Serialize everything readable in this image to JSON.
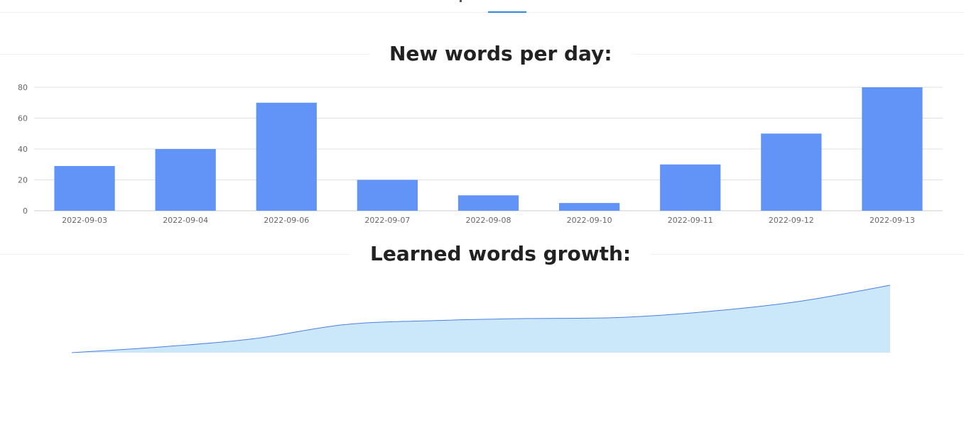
{
  "colors": {
    "tab_accent": "#2d8cd6",
    "bar": "#6294f8",
    "gridline": "#e0e0e0",
    "axis": "#cccccc",
    "area_fill": "#cbe8fb",
    "area_stroke": "#4a7fe0"
  },
  "sections": {
    "daily_title": "New words per day:",
    "growth_title": "Learned words growth:"
  },
  "chart_data": [
    {
      "type": "bar",
      "title": "New words per day:",
      "categories": [
        "2022-09-03",
        "2022-09-04",
        "2022-09-06",
        "2022-09-07",
        "2022-09-08",
        "2022-09-10",
        "2022-09-11",
        "2022-09-12",
        "2022-09-13"
      ],
      "values": [
        29,
        40,
        70,
        20,
        10,
        5,
        30,
        50,
        80
      ],
      "yticks": [
        0,
        20,
        40,
        60,
        80
      ],
      "ylim": [
        0,
        80
      ],
      "grid": true,
      "legend": "none",
      "xlabel": "",
      "ylabel": ""
    },
    {
      "type": "area",
      "title": "Learned words growth:",
      "x": [
        "2022-09-03",
        "2022-09-04",
        "2022-09-06",
        "2022-09-07",
        "2022-09-08",
        "2022-09-10",
        "2022-09-11",
        "2022-09-12",
        "2022-09-13"
      ],
      "values": [
        29,
        69,
        139,
        159,
        169,
        174,
        204,
        254,
        334
      ],
      "ylim": [
        0,
        334
      ],
      "grid": false,
      "legend": "none",
      "axes_visible": false
    }
  ]
}
